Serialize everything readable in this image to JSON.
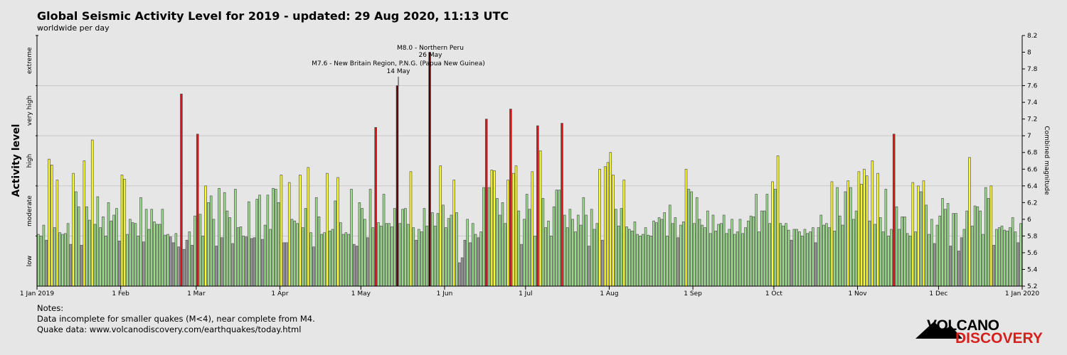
{
  "chart_data": {
    "type": "bar",
    "title": "Global Seismic Activity Level for 2019 - updated: 29 Aug 2020, 11:13 UTC",
    "subtitle": "worldwide per day",
    "ylabel_left": "Activity level",
    "ylabel_right": "Combined magnitude",
    "ylim": [
      5.2,
      8.2
    ],
    "yticks": [
      "5.2",
      "5.4",
      "5.6",
      "5.8",
      "6",
      "6.2",
      "6.4",
      "6.6",
      "6.8",
      "7",
      "7.2",
      "7.4",
      "7.6",
      "7.8",
      "8",
      "8.2"
    ],
    "levels": [
      {
        "label": "low",
        "from": 5.2,
        "to": 5.8
      },
      {
        "label": "moderate",
        "from": 5.8,
        "to": 6.4
      },
      {
        "label": "high",
        "from": 6.4,
        "to": 7.0
      },
      {
        "label": "very high",
        "from": 7.0,
        "to": 7.6
      },
      {
        "label": "extreme",
        "from": 7.6,
        "to": 8.2
      }
    ],
    "level_colors": {
      "low": "#999999",
      "moderate": "#99dd88",
      "high": "#ffff22",
      "very high": "#dd1111",
      "extreme": "#550000"
    },
    "xticks": [
      {
        "label": "1 Jan 2019",
        "day": 0
      },
      {
        "label": "1 Feb",
        "day": 31
      },
      {
        "label": "1 Mar",
        "day": 59
      },
      {
        "label": "1 Apr",
        "day": 90
      },
      {
        "label": "1 May",
        "day": 120
      },
      {
        "label": "1 Jun",
        "day": 151
      },
      {
        "label": "1 Jul",
        "day": 181
      },
      {
        "label": "1 Aug",
        "day": 212
      },
      {
        "label": "1 Sep",
        "day": 243
      },
      {
        "label": "1 Oct",
        "day": 273
      },
      {
        "label": "1 Nov",
        "day": 304
      },
      {
        "label": "1 Dec",
        "day": 334
      },
      {
        "label": "1 Jan 2020",
        "day": 365
      }
    ],
    "grid": true,
    "annotations": [
      {
        "lines": [
          "M8.0 - Northern Peru",
          "26 May"
        ],
        "day": 145
      },
      {
        "lines": [
          "M7.6 - New Britain Region, P.N.G. (Papua New Guinea)",
          "14 May"
        ],
        "day": 133
      }
    ],
    "values": [
      5.82,
      5.8,
      5.93,
      5.75,
      6.72,
      6.65,
      5.9,
      6.47,
      5.84,
      5.82,
      5.83,
      5.95,
      5.7,
      6.55,
      6.33,
      6.15,
      5.69,
      6.7,
      6.15,
      5.99,
      6.95,
      5.94,
      6.27,
      5.9,
      6.03,
      5.8,
      6.2,
      5.98,
      6.05,
      6.13,
      5.74,
      6.53,
      6.48,
      5.82,
      6.0,
      5.96,
      5.95,
      5.8,
      6.26,
      5.73,
      6.12,
      5.88,
      6.12,
      5.97,
      5.94,
      5.94,
      6.12,
      5.81,
      5.82,
      5.79,
      5.72,
      5.83,
      5.67,
      7.5,
      5.64,
      5.75,
      5.85,
      5.69,
      6.04,
      7.02,
      6.06,
      5.8,
      6.4,
      6.2,
      6.28,
      6.0,
      5.68,
      6.37,
      5.78,
      6.32,
      6.1,
      6.02,
      5.71,
      6.36,
      5.9,
      5.91,
      5.8,
      5.79,
      6.21,
      5.77,
      5.78,
      6.24,
      6.29,
      5.76,
      5.93,
      6.29,
      5.88,
      6.37,
      6.36,
      6.2,
      6.53,
      5.72,
      5.72,
      6.44,
      6.0,
      5.98,
      5.95,
      6.53,
      5.9,
      6.13,
      6.62,
      5.84,
      5.67,
      6.26,
      6.03,
      5.82,
      5.84,
      6.55,
      5.86,
      5.88,
      6.22,
      6.5,
      5.96,
      5.82,
      5.84,
      5.82,
      6.36,
      5.7,
      5.68,
      6.2,
      6.13,
      6.0,
      5.78,
      6.36,
      5.9,
      7.1,
      5.96,
      5.92,
      6.3,
      5.95,
      5.95,
      5.91,
      6.13,
      7.6,
      5.95,
      6.12,
      6.13,
      5.94,
      6.57,
      5.9,
      5.75,
      5.88,
      5.85,
      6.13,
      5.92,
      8.0,
      6.08,
      5.92,
      6.07,
      6.64,
      6.17,
      5.9,
      6.01,
      6.05,
      6.47,
      6.08,
      5.48,
      5.54,
      5.75,
      6.0,
      5.72,
      5.95,
      5.82,
      5.78,
      5.85,
      6.38,
      7.2,
      6.38,
      6.59,
      6.58,
      6.25,
      6.05,
      6.2,
      5.95,
      6.47,
      7.32,
      6.55,
      6.64,
      6.1,
      5.7,
      6.0,
      6.3,
      6.12,
      6.57,
      5.8,
      7.12,
      6.82,
      6.25,
      5.9,
      5.98,
      5.8,
      6.15,
      6.35,
      6.35,
      7.15,
      6.05,
      5.9,
      6.12,
      6.0,
      5.85,
      6.05,
      5.93,
      6.26,
      6.05,
      5.68,
      6.12,
      5.88,
      5.95,
      6.6,
      5.75,
      6.63,
      6.68,
      6.8,
      6.53,
      6.12,
      5.92,
      6.13,
      6.47,
      5.91,
      5.88,
      5.86,
      5.97,
      5.82,
      5.8,
      5.82,
      5.9,
      5.81,
      5.8,
      5.98,
      5.96,
      6.02,
      6.0,
      6.08,
      5.8,
      6.17,
      5.95,
      6.02,
      5.78,
      5.93,
      5.97,
      6.6,
      6.36,
      6.33,
      5.95,
      6.26,
      6.0,
      5.93,
      5.9,
      6.1,
      5.83,
      6.05,
      5.86,
      5.94,
      5.95,
      6.05,
      5.83,
      5.88,
      6.0,
      5.82,
      5.85,
      6.0,
      5.83,
      5.9,
      5.98,
      6.04,
      6.03,
      6.3,
      5.85,
      6.1,
      6.1,
      6.3,
      5.95,
      6.45,
      6.36,
      6.76,
      5.95,
      5.92,
      5.95,
      5.87,
      5.75,
      5.88,
      5.88,
      5.85,
      5.8,
      5.88,
      5.83,
      5.85,
      5.9,
      5.72,
      5.9,
      6.05,
      5.93,
      5.95,
      5.9,
      6.45,
      5.86,
      6.38,
      6.04,
      5.93,
      6.33,
      6.46,
      6.38,
      6.0,
      6.1,
      6.57,
      6.42,
      6.6,
      6.52,
      5.98,
      6.7,
      5.94,
      6.55,
      6.02,
      5.85,
      6.36,
      5.8,
      5.88,
      7.02,
      6.15,
      5.88,
      6.03,
      6.03,
      5.83,
      5.8,
      6.44,
      5.85,
      6.4,
      6.33,
      6.46,
      6.17,
      5.82,
      6.0,
      5.71,
      5.93,
      6.04,
      6.25,
      6.12,
      6.19,
      5.68,
      6.07,
      6.07,
      5.62,
      5.78,
      5.88,
      6.1,
      6.74,
      5.92,
      6.16,
      6.15,
      6.1,
      5.82,
      6.38,
      6.25,
      6.4,
      5.69,
      5.88,
      5.9,
      5.92,
      5.87,
      5.86,
      5.9,
      6.02,
      5.85,
      5.72,
      5.95
    ]
  },
  "notes": [
    "Notes:",
    "Data incomplete for smaller quakes (M<4), near complete from M4.",
    "Quake data: www.volcanodiscovery.com/earthquakes/today.html"
  ],
  "logo": {
    "line1": "VOLCANO",
    "line2": "DISCOVERY"
  }
}
